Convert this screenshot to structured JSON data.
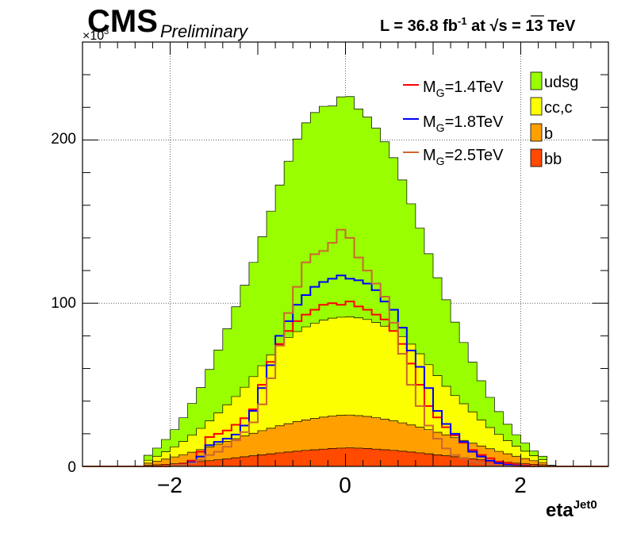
{
  "header": {
    "experiment": "CMS",
    "status": "Preliminary",
    "lumi_text": "L = 36.8 fb",
    "lumi_sup": "-1",
    "lumi_mid": " at  ",
    "sqrt_symbol": "√s",
    "energy_text": " = 13 TeV"
  },
  "chart_data": {
    "type": "histogram",
    "xlabel": "eta",
    "xlabel_sup": "Jet0",
    "ylabel": "",
    "y_multiplier": "×10",
    "y_multiplier_exp": "3",
    "xlim": [
      -3,
      3
    ],
    "ylim": [
      0,
      260
    ],
    "grid": true,
    "x_ticks": [
      -2,
      0,
      2
    ],
    "x_tick_labels": [
      "−2",
      "0",
      "2"
    ],
    "y_ticks": [
      0,
      100,
      200
    ],
    "y_tick_labels": [
      "0",
      "100",
      "200"
    ],
    "bin_width": 0.1,
    "x": [
      -2.45,
      -2.35,
      -2.25,
      -2.15,
      -2.05,
      -1.95,
      -1.85,
      -1.75,
      -1.65,
      -1.55,
      -1.45,
      -1.35,
      -1.25,
      -1.15,
      -1.05,
      -0.95,
      -0.85,
      -0.75,
      -0.65,
      -0.55,
      -0.45,
      -0.35,
      -0.25,
      -0.15,
      -0.05,
      0.05,
      0.15,
      0.25,
      0.35,
      0.45,
      0.55,
      0.65,
      0.75,
      0.85,
      0.95,
      1.05,
      1.15,
      1.25,
      1.35,
      1.45,
      1.55,
      1.65,
      1.75,
      1.85,
      1.95,
      2.05,
      2.15,
      2.25,
      2.35,
      2.45
    ],
    "stacked_series": [
      {
        "name": "bb",
        "color": "#ff4a00",
        "values": [
          0,
          0,
          0.6,
          1.0,
          1.3,
          1.6,
          2.0,
          2.5,
          3.0,
          3.5,
          4.1,
          4.7,
          5.3,
          5.9,
          6.5,
          7.1,
          7.7,
          8.3,
          8.8,
          9.3,
          9.8,
          10.2,
          10.6,
          11.0,
          11.2,
          11.4,
          11.2,
          11.0,
          10.6,
          10.2,
          9.8,
          9.3,
          8.8,
          8.3,
          7.7,
          7.1,
          6.5,
          5.9,
          5.3,
          4.7,
          4.1,
          3.5,
          3.0,
          2.5,
          2.0,
          1.6,
          1.3,
          1.0,
          0.6,
          0
        ]
      },
      {
        "name": "b",
        "color": "#ffa000",
        "values": [
          0,
          0,
          1.4,
          2.2,
          3.2,
          4.2,
          5.2,
          6.2,
          7.3,
          8.4,
          9.5,
          10.6,
          11.7,
          12.8,
          13.8,
          14.8,
          15.7,
          16.6,
          17.4,
          18.1,
          18.7,
          19.2,
          19.6,
          19.9,
          20.1,
          20.1,
          19.9,
          19.6,
          19.2,
          18.7,
          18.1,
          17.4,
          16.6,
          15.7,
          14.8,
          13.8,
          12.8,
          11.7,
          10.6,
          9.5,
          8.4,
          7.3,
          6.2,
          5.2,
          4.2,
          3.2,
          2.2,
          1.4,
          0,
          0
        ]
      },
      {
        "name": "cc,c",
        "color": "#fcff00",
        "values": [
          0,
          0,
          1.8,
          3.0,
          4.5,
          6.2,
          8.1,
          10.4,
          13.0,
          16.0,
          19.2,
          22.5,
          25.8,
          29.8,
          34.7,
          39.8,
          45.0,
          49.5,
          52.8,
          55.2,
          57.0,
          58.4,
          59.4,
          59.9,
          60.1,
          60.1,
          59.9,
          59.4,
          58.4,
          57.0,
          55.2,
          52.8,
          49.5,
          45.0,
          39.8,
          34.7,
          29.8,
          25.8,
          22.5,
          19.2,
          16.0,
          13.0,
          10.4,
          8.1,
          6.2,
          4.5,
          3.0,
          1.8,
          0,
          0
        ]
      },
      {
        "name": "udsg",
        "color": "#99ff00",
        "values": [
          0,
          0,
          3.0,
          5.0,
          7.5,
          10.5,
          14.5,
          19.5,
          25.0,
          31.5,
          38.5,
          46.5,
          55.0,
          62.5,
          70.0,
          79.0,
          88.0,
          98.0,
          108.0,
          118.0,
          125.0,
          129.0,
          131.0,
          130.0,
          135.0,
          135.0,
          128.0,
          124.0,
          119.0,
          113.0,
          106.0,
          96.0,
          86.0,
          77.0,
          68.0,
          60.0,
          53.0,
          45.0,
          37.5,
          30.5,
          24.0,
          18.5,
          14.0,
          10.0,
          7.0,
          5.0,
          3.0,
          2.0,
          0,
          0
        ]
      }
    ],
    "signal_series": [
      {
        "name": "M_G=1.4TeV",
        "color": "#ff0000",
        "values": [
          0,
          0,
          0,
          0,
          0,
          0.5,
          1.5,
          3.5,
          9.0,
          18.0,
          20.0,
          22.0,
          25.5,
          29.5,
          35.0,
          50.0,
          64.0,
          75.0,
          83.0,
          89.0,
          93.0,
          96.0,
          99.0,
          100.0,
          99.0,
          101.0,
          98.0,
          96.0,
          93.0,
          90.0,
          83.0,
          75.0,
          63.0,
          50.0,
          37.0,
          30.0,
          24.0,
          19.0,
          14.5,
          10.0,
          7.0,
          5.0,
          3.0,
          2.0,
          1.0,
          0.5,
          0,
          0,
          0,
          0
        ]
      },
      {
        "name": "M_G=1.8TeV",
        "color": "#0000ff",
        "values": [
          0,
          0,
          0,
          0,
          0,
          0.3,
          1.0,
          2.5,
          6.0,
          13.0,
          15.0,
          17.0,
          19.5,
          25.0,
          34.0,
          48.0,
          62.0,
          80.0,
          89.0,
          99.0,
          105.0,
          110.0,
          113.0,
          115.0,
          117.0,
          115.0,
          114.0,
          112.0,
          108.0,
          101.0,
          96.0,
          85.0,
          71.0,
          61.0,
          48.0,
          34.0,
          26.0,
          20.0,
          15.0,
          9.0,
          6.0,
          3.5,
          2.0,
          1.0,
          0.5,
          0.2,
          0,
          0,
          0,
          0
        ]
      },
      {
        "name": "M_G=2.5TeV",
        "color": "#cc6633",
        "values": [
          0,
          0,
          0,
          0,
          0,
          0.5,
          1.0,
          2.0,
          4.0,
          7.0,
          9.0,
          12.0,
          16.0,
          21.0,
          27.0,
          38.0,
          54.0,
          74.0,
          94.0,
          110.0,
          125.0,
          130.0,
          132.0,
          137.0,
          145.0,
          140.0,
          128.0,
          120.0,
          112.0,
          104.0,
          88.0,
          69.0,
          50.0,
          37.0,
          25.0,
          17.0,
          11.0,
          7.0,
          5.0,
          3.0,
          2.0,
          1.2,
          0.7,
          0.3,
          0.1,
          0,
          0,
          0,
          0,
          0
        ]
      }
    ],
    "legend_left": [
      {
        "label_main": "M",
        "label_sub": "G",
        "label_rest": "=1.4TeV",
        "color": "#ff0000"
      },
      {
        "label_main": "M",
        "label_sub": "G",
        "label_rest": "=1.8TeV",
        "color": "#0000ff"
      },
      {
        "label_main": "M",
        "label_sub": "G",
        "label_rest": "=2.5TeV",
        "color": "#cc6633"
      }
    ],
    "legend_right": [
      {
        "label": "udsg",
        "color": "#99ff00"
      },
      {
        "label": "cc,c",
        "color": "#fcff00"
      },
      {
        "label": "b",
        "color": "#ffa000"
      },
      {
        "label": "bb",
        "color": "#ff4a00"
      }
    ],
    "legend_placement": "top-right"
  }
}
